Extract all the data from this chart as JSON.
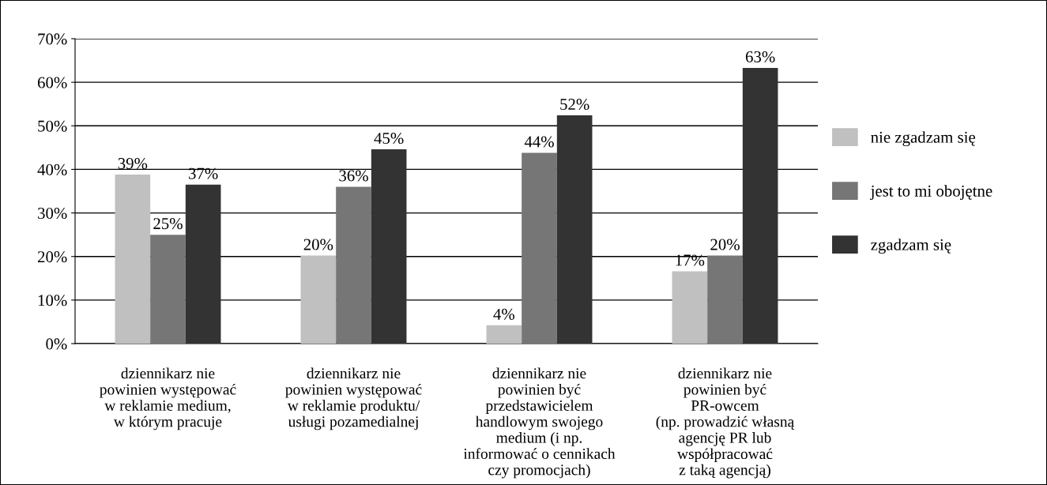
{
  "chart_data": {
    "type": "bar",
    "categories": [
      "dziennikarz nie\npowinien występować\nw reklamie medium,\nw którym pracuje",
      "dziennikarz nie\npowinien występować\nw reklamie produktu/\nusługi pozamedialnej",
      "dziennikarz nie\npowinien być\nprzedstawicielem\nhandlowym swojego\nmedium (i np.\ninformować o cennikach\nczy promocjach)",
      "dziennikarz nie\npowinien być\nPR-owcem\n(np. prowadzić własną\nagencję PR lub\nwspółpracować\nz taką agencją)"
    ],
    "series": [
      {
        "name": "nie zgadzam się",
        "color": "#c0c0c0",
        "values": [
          38.8,
          20.2,
          4.2,
          16.6
        ],
        "value_labels": [
          "39%",
          "20%",
          "4%",
          "17%"
        ]
      },
      {
        "name": "jest to mi obojętne",
        "color": "#767676",
        "values": [
          25,
          36,
          43.8,
          20.2
        ],
        "value_labels": [
          "25%",
          "36%",
          "44%",
          "20%"
        ]
      },
      {
        "name": "zgadzam się",
        "color": "#333333",
        "values": [
          36.5,
          44.6,
          52.4,
          63.3
        ],
        "value_labels": [
          "37%",
          "45%",
          "52%",
          "63%"
        ]
      }
    ],
    "ylim": [
      0,
      70
    ],
    "yticks": [
      {
        "value": 0,
        "label": "0%"
      },
      {
        "value": 10,
        "label": "10%"
      },
      {
        "value": 20,
        "label": "20%"
      },
      {
        "value": 30,
        "label": "30%"
      },
      {
        "value": 40,
        "label": "40%"
      },
      {
        "value": 50,
        "label": "50%"
      },
      {
        "value": 60,
        "label": "60%"
      },
      {
        "value": 70,
        "label": "70%"
      }
    ],
    "grid": "y",
    "legend": "right"
  }
}
